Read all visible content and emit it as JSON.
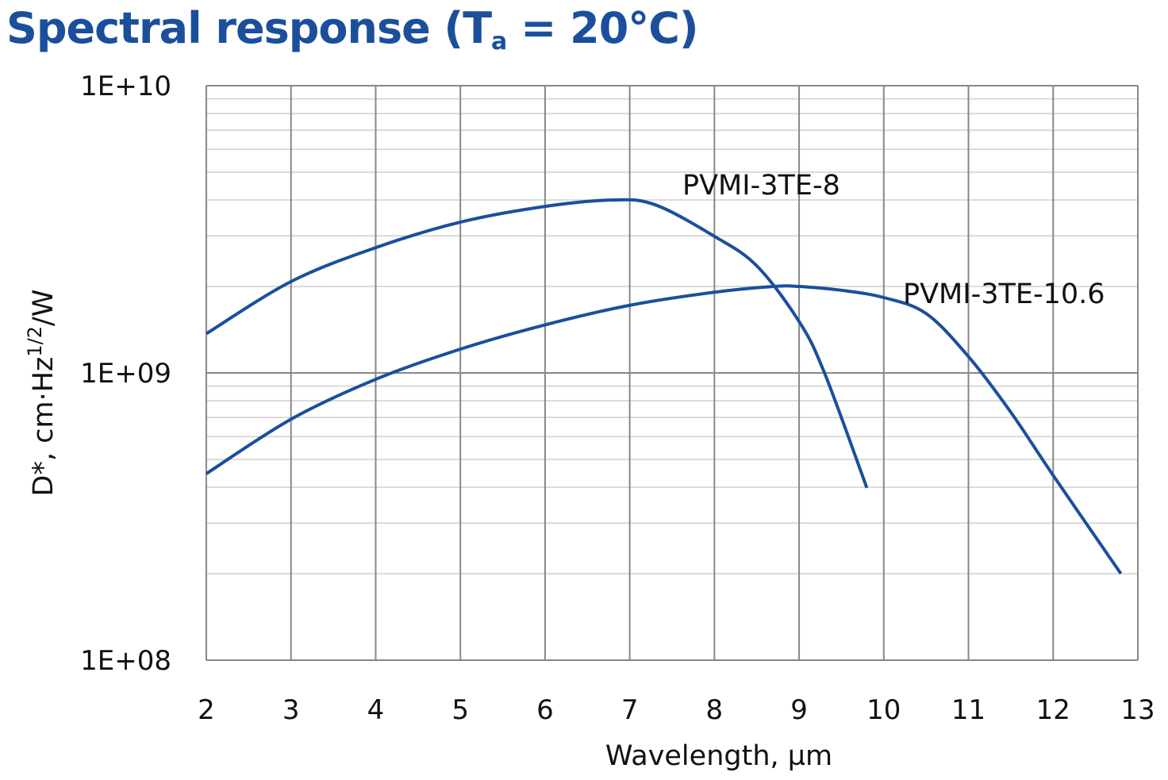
{
  "chart_data": {
    "type": "line",
    "title_main": "Spectral response (T",
    "title_sub": "a",
    "title_end": " = 20°C)",
    "xlabel": "Wavelength, µm",
    "ylabel_pre": "D*, cm·Hz",
    "ylabel_sup": "1/2",
    "ylabel_post": "/W",
    "xlim": [
      2,
      13
    ],
    "ylim": [
      100000000.0,
      10000000000.0
    ],
    "yscale": "log",
    "grid": true,
    "x_ticks": [
      "2",
      "3",
      "4",
      "5",
      "6",
      "7",
      "8",
      "9",
      "10",
      "11",
      "12",
      "13"
    ],
    "y_ticks": [
      "1E+08",
      "1E+09",
      "1E+10"
    ],
    "line_color": "#1b4f9c",
    "series": [
      {
        "name": "PVMI-3TE-8",
        "x": [
          2,
          3,
          4,
          5,
          6,
          6.8,
          7.3,
          8,
          8.5,
          9,
          9.3,
          9.8
        ],
        "y": [
          1370000000.0,
          2080000000.0,
          2730000000.0,
          3350000000.0,
          3800000000.0,
          4000000000.0,
          3850000000.0,
          2990000000.0,
          2360000000.0,
          1510000000.0,
          1000000000.0,
          398000000.0
        ]
      },
      {
        "name": "PVMI-3TE-10.6",
        "x": [
          2,
          3,
          4,
          5,
          6,
          7,
          8,
          8.7,
          9,
          9.5,
          10,
          10.5,
          11,
          11.5,
          12,
          12.8
        ],
        "y": [
          446000000.0,
          690000000.0,
          950000000.0,
          1210000000.0,
          1470000000.0,
          1720000000.0,
          1910000000.0,
          2000000000.0,
          2000000000.0,
          1940000000.0,
          1830000000.0,
          1610000000.0,
          1140000000.0,
          730000000.0,
          440000000.0,
          200000000.0
        ]
      }
    ]
  }
}
